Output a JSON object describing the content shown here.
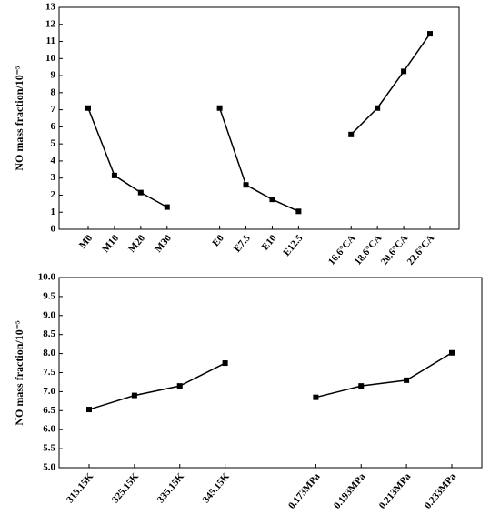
{
  "chart_data": [
    {
      "type": "line",
      "y_label": "NO mass fraction/10⁻⁵",
      "categories": [
        "M0",
        "M10",
        "M20",
        "M30",
        null,
        "E0",
        "E7.5",
        "E10",
        "E12.5",
        null,
        "16.6°CA",
        "18.6°CA",
        "20.6°CA",
        "22.6°CA"
      ],
      "values": [
        7.1,
        3.15,
        2.15,
        1.3,
        null,
        7.1,
        2.6,
        1.75,
        1.05,
        null,
        5.55,
        7.1,
        9.25,
        11.45
      ],
      "color": "#000000",
      "ylim": [
        0,
        13
      ],
      "yticks": [
        0,
        1,
        2,
        3,
        4,
        5,
        6,
        7,
        8,
        9,
        10,
        11,
        12,
        13
      ]
    },
    {
      "type": "line",
      "y_label": "NO mass fraction/10⁻⁵",
      "categories": [
        "315.15K",
        "325.15K",
        "335.15K",
        "345.15K",
        null,
        "0.173MPa",
        "0.193MPa",
        "0.213MPa",
        "0.233MPa"
      ],
      "values": [
        6.53,
        6.9,
        7.15,
        7.75,
        null,
        6.85,
        7.15,
        7.3,
        8.02
      ],
      "color": "#000000",
      "ylim": [
        5,
        10
      ],
      "yticks": [
        {
          "value": 5,
          "label": "5.0"
        },
        {
          "value": 5.5,
          "label": "5.5"
        },
        {
          "value": 6,
          "label": "6.0"
        },
        {
          "value": 6.5,
          "label": "6.5"
        },
        {
          "value": 7,
          "label": "7.0"
        },
        {
          "value": 7.5,
          "label": "7.5"
        },
        {
          "value": 8,
          "label": "8.0"
        },
        {
          "value": 8.5,
          "label": "8.5"
        },
        {
          "value": 9,
          "label": "9.0"
        },
        {
          "value": 9.5,
          "label": "9.5"
        },
        {
          "value": 10,
          "label": "10.0"
        }
      ]
    }
  ]
}
